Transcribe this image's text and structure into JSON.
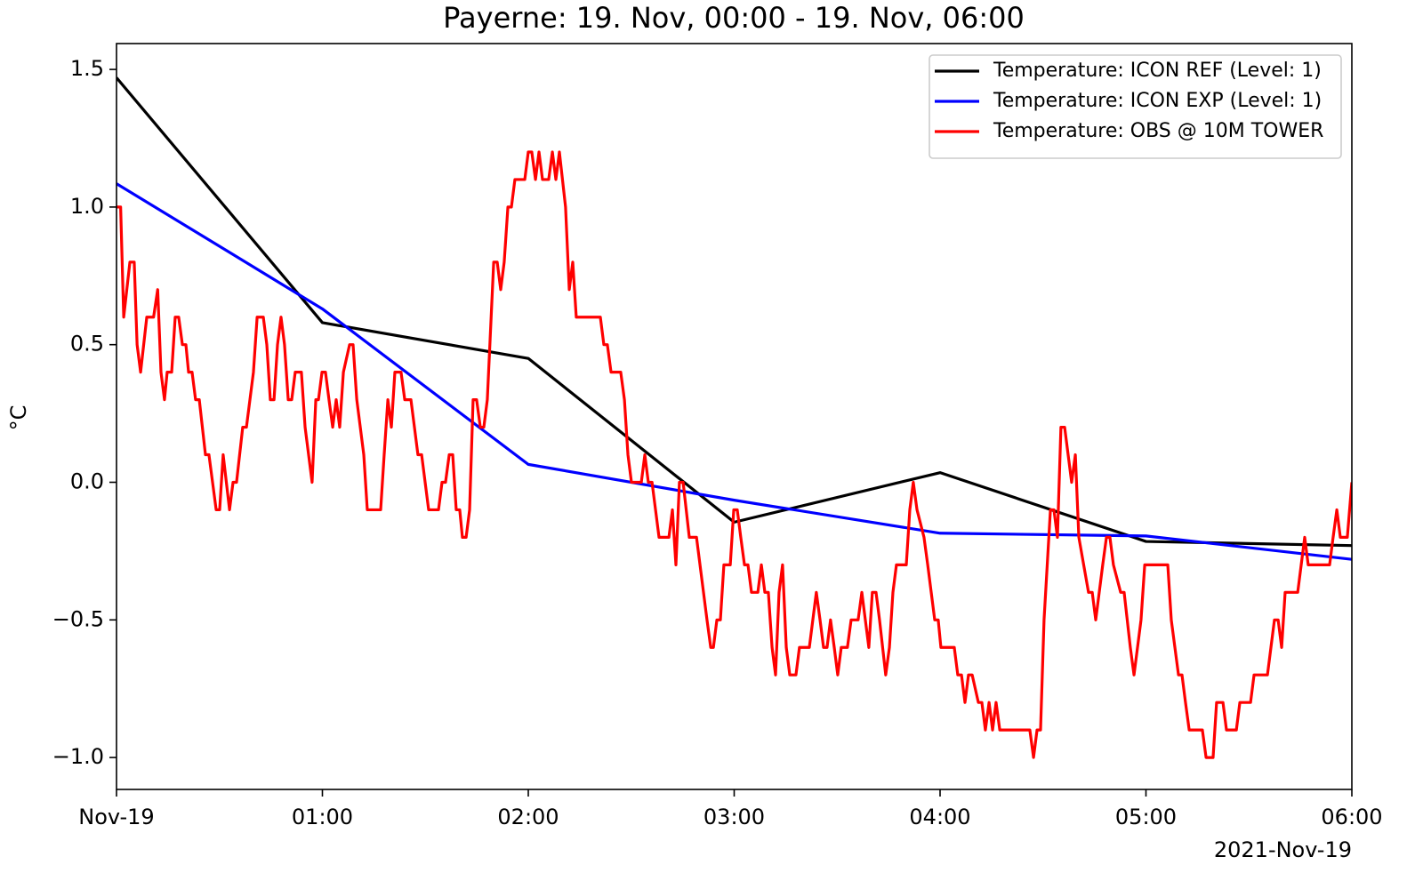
{
  "chart_data": {
    "type": "line",
    "title": "Payerne: 19. Nov, 00:00 - 19. Nov, 06:00",
    "y_label": "°C",
    "x_offset_label": "2021-Nov-19",
    "xlim": [
      0,
      6
    ],
    "xticks": [
      {
        "value": 0,
        "label": "Nov-19"
      },
      {
        "value": 1,
        "label": "01:00"
      },
      {
        "value": 2,
        "label": "02:00"
      },
      {
        "value": 3,
        "label": "03:00"
      },
      {
        "value": 4,
        "label": "04:00"
      },
      {
        "value": 5,
        "label": "05:00"
      },
      {
        "value": 6,
        "label": "06:00"
      }
    ],
    "ylim": [
      -1.116,
      1.594
    ],
    "yticks": [
      {
        "value": -1.0,
        "label": "−1.0"
      },
      {
        "value": -0.5,
        "label": "−0.5"
      },
      {
        "value": 0,
        "label": "0.0"
      },
      {
        "value": 0.5,
        "label": "0.5"
      },
      {
        "value": 1.0,
        "label": "1.0"
      },
      {
        "value": 1.5,
        "label": "1.5"
      }
    ],
    "legend": "upper right",
    "grid": false,
    "series": [
      {
        "name": "Temperature: ICON REF (Level: 1)",
        "color": "#000000",
        "x": [
          0,
          1,
          2,
          3,
          4,
          5,
          6
        ],
        "values": [
          1.47,
          0.58,
          0.45,
          -0.145,
          0.035,
          -0.215,
          -0.23
        ]
      },
      {
        "name": "Temperature: ICON EXP (Level: 1)",
        "color": "#0000ff",
        "x": [
          0,
          1,
          2,
          3,
          4,
          5,
          6
        ],
        "values": [
          1.085,
          0.63,
          0.065,
          -0.065,
          -0.185,
          -0.195,
          -0.28
        ]
      },
      {
        "name": "Temperature: OBS @ 10M TOWER",
        "color": "#ff0000",
        "x": [
          0,
          0.02,
          0.035,
          0.065,
          0.086,
          0.1,
          0.117,
          0.147,
          0.18,
          0.2,
          0.216,
          0.233,
          0.246,
          0.268,
          0.285,
          0.302,
          0.32,
          0.337,
          0.35,
          0.367,
          0.384,
          0.402,
          0.432,
          0.449,
          0.484,
          0.501,
          0.518,
          0.549,
          0.566,
          0.583,
          0.613,
          0.631,
          0.665,
          0.683,
          0.713,
          0.73,
          0.747,
          0.765,
          0.782,
          0.799,
          0.816,
          0.834,
          0.851,
          0.868,
          0.898,
          0.916,
          0.95,
          0.968,
          0.981,
          0.998,
          1.015,
          1.032,
          1.05,
          1.067,
          1.084,
          1.102,
          1.132,
          1.149,
          1.167,
          1.201,
          1.218,
          1.283,
          1.3,
          1.318,
          1.335,
          1.352,
          1.382,
          1.4,
          1.43,
          1.447,
          1.464,
          1.482,
          1.516,
          1.564,
          1.581,
          1.598,
          1.616,
          1.633,
          1.65,
          1.667,
          1.68,
          1.698,
          1.715,
          1.732,
          1.749,
          1.767,
          1.784,
          1.801,
          1.832,
          1.849,
          1.866,
          1.883,
          1.901,
          1.918,
          1.935,
          1.965,
          1.983,
          2.0,
          2.017,
          2.035,
          2.052,
          2.069,
          2.099,
          2.117,
          2.134,
          2.151,
          2.181,
          2.199,
          2.216,
          2.233,
          2.35,
          2.367,
          2.384,
          2.402,
          2.449,
          2.467,
          2.484,
          2.501,
          2.549,
          2.566,
          2.583,
          2.601,
          2.618,
          2.635,
          2.683,
          2.7,
          2.717,
          2.734,
          2.752,
          2.782,
          2.817,
          2.868,
          2.886,
          2.899,
          2.916,
          2.933,
          2.95,
          2.981,
          2.998,
          3.015,
          3.032,
          3.05,
          3.067,
          3.084,
          3.115,
          3.132,
          3.149,
          3.166,
          3.184,
          3.201,
          3.218,
          3.235,
          3.253,
          3.27,
          3.3,
          3.317,
          3.365,
          3.382,
          3.399,
          3.417,
          3.434,
          3.451,
          3.468,
          3.486,
          3.503,
          3.52,
          3.55,
          3.568,
          3.602,
          3.62,
          3.637,
          3.654,
          3.671,
          3.689,
          3.706,
          3.736,
          3.754,
          3.771,
          3.788,
          3.836,
          3.853,
          3.87,
          3.888,
          3.922,
          3.94,
          3.974,
          3.991,
          4.004,
          4.069,
          4.086,
          4.104,
          4.121,
          4.138,
          4.156,
          4.186,
          4.203,
          4.22,
          4.238,
          4.255,
          4.272,
          4.29,
          4.436,
          4.454,
          4.471,
          4.488,
          4.505,
          4.536,
          4.553,
          4.57,
          4.587,
          4.605,
          4.622,
          4.639,
          4.657,
          4.674,
          4.721,
          4.739,
          4.756,
          4.773,
          4.79,
          4.808,
          4.825,
          4.842,
          4.877,
          4.894,
          4.924,
          4.942,
          4.959,
          4.976,
          4.994,
          5.106,
          5.123,
          5.158,
          5.175,
          5.192,
          5.21,
          5.274,
          5.292,
          5.326,
          5.343,
          5.374,
          5.391,
          5.439,
          5.456,
          5.508,
          5.525,
          5.59,
          5.607,
          5.624,
          5.642,
          5.659,
          5.676,
          5.737,
          5.754,
          5.771,
          5.788,
          5.892,
          5.909,
          5.927,
          5.944,
          5.978,
          6.0
        ],
        "values": [
          1.0,
          1.0,
          0.6,
          0.8,
          0.8,
          0.5,
          0.4,
          0.6,
          0.6,
          0.7,
          0.4,
          0.3,
          0.4,
          0.4,
          0.6,
          0.6,
          0.5,
          0.5,
          0.4,
          0.4,
          0.3,
          0.3,
          0.1,
          0.1,
          -0.1,
          -0.1,
          0.1,
          -0.1,
          0,
          0,
          0.2,
          0.2,
          0.4,
          0.6,
          0.6,
          0.5,
          0.3,
          0.3,
          0.5,
          0.6,
          0.5,
          0.3,
          0.3,
          0.4,
          0.4,
          0.2,
          0,
          0.3,
          0.3,
          0.4,
          0.4,
          0.3,
          0.2,
          0.3,
          0.2,
          0.4,
          0.5,
          0.5,
          0.3,
          0.1,
          -0.1,
          -0.1,
          0.1,
          0.3,
          0.2,
          0.4,
          0.4,
          0.3,
          0.3,
          0.2,
          0.1,
          0.1,
          -0.1,
          -0.1,
          0,
          0,
          0.1,
          0.1,
          -0.1,
          -0.1,
          -0.2,
          -0.2,
          -0.1,
          0.3,
          0.3,
          0.2,
          0.2,
          0.3,
          0.8,
          0.8,
          0.7,
          0.8,
          1.0,
          1.0,
          1.1,
          1.1,
          1.1,
          1.2,
          1.2,
          1.1,
          1.2,
          1.1,
          1.1,
          1.2,
          1.1,
          1.2,
          1.0,
          0.7,
          0.8,
          0.6,
          0.6,
          0.5,
          0.5,
          0.4,
          0.4,
          0.3,
          0.1,
          0,
          0,
          0.1,
          0,
          0,
          -0.1,
          -0.2,
          -0.2,
          -0.1,
          -0.3,
          0,
          0,
          -0.2,
          -0.2,
          -0.5,
          -0.6,
          -0.6,
          -0.5,
          -0.5,
          -0.3,
          -0.3,
          -0.1,
          -0.1,
          -0.2,
          -0.3,
          -0.3,
          -0.4,
          -0.4,
          -0.3,
          -0.4,
          -0.4,
          -0.6,
          -0.7,
          -0.4,
          -0.3,
          -0.6,
          -0.7,
          -0.7,
          -0.6,
          -0.6,
          -0.5,
          -0.4,
          -0.5,
          -0.6,
          -0.6,
          -0.5,
          -0.6,
          -0.7,
          -0.6,
          -0.6,
          -0.5,
          -0.5,
          -0.4,
          -0.5,
          -0.6,
          -0.4,
          -0.4,
          -0.5,
          -0.7,
          -0.6,
          -0.4,
          -0.3,
          -0.3,
          -0.1,
          0,
          -0.1,
          -0.2,
          -0.3,
          -0.5,
          -0.5,
          -0.6,
          -0.6,
          -0.7,
          -0.7,
          -0.8,
          -0.7,
          -0.7,
          -0.8,
          -0.8,
          -0.9,
          -0.8,
          -0.9,
          -0.8,
          -0.9,
          -0.9,
          -1.0,
          -0.9,
          -0.9,
          -0.5,
          -0.1,
          -0.1,
          -0.2,
          0.2,
          0.2,
          0.1,
          0,
          0.1,
          -0.2,
          -0.4,
          -0.4,
          -0.5,
          -0.4,
          -0.3,
          -0.2,
          -0.2,
          -0.3,
          -0.4,
          -0.4,
          -0.6,
          -0.7,
          -0.6,
          -0.5,
          -0.3,
          -0.3,
          -0.5,
          -0.7,
          -0.7,
          -0.8,
          -0.9,
          -0.9,
          -1.0,
          -1.0,
          -0.8,
          -0.8,
          -0.9,
          -0.9,
          -0.8,
          -0.8,
          -0.7,
          -0.7,
          -0.6,
          -0.5,
          -0.5,
          -0.6,
          -0.4,
          -0.4,
          -0.3,
          -0.2,
          -0.3,
          -0.3,
          -0.2,
          -0.1,
          -0.2,
          -0.2,
          0
        ]
      }
    ]
  }
}
